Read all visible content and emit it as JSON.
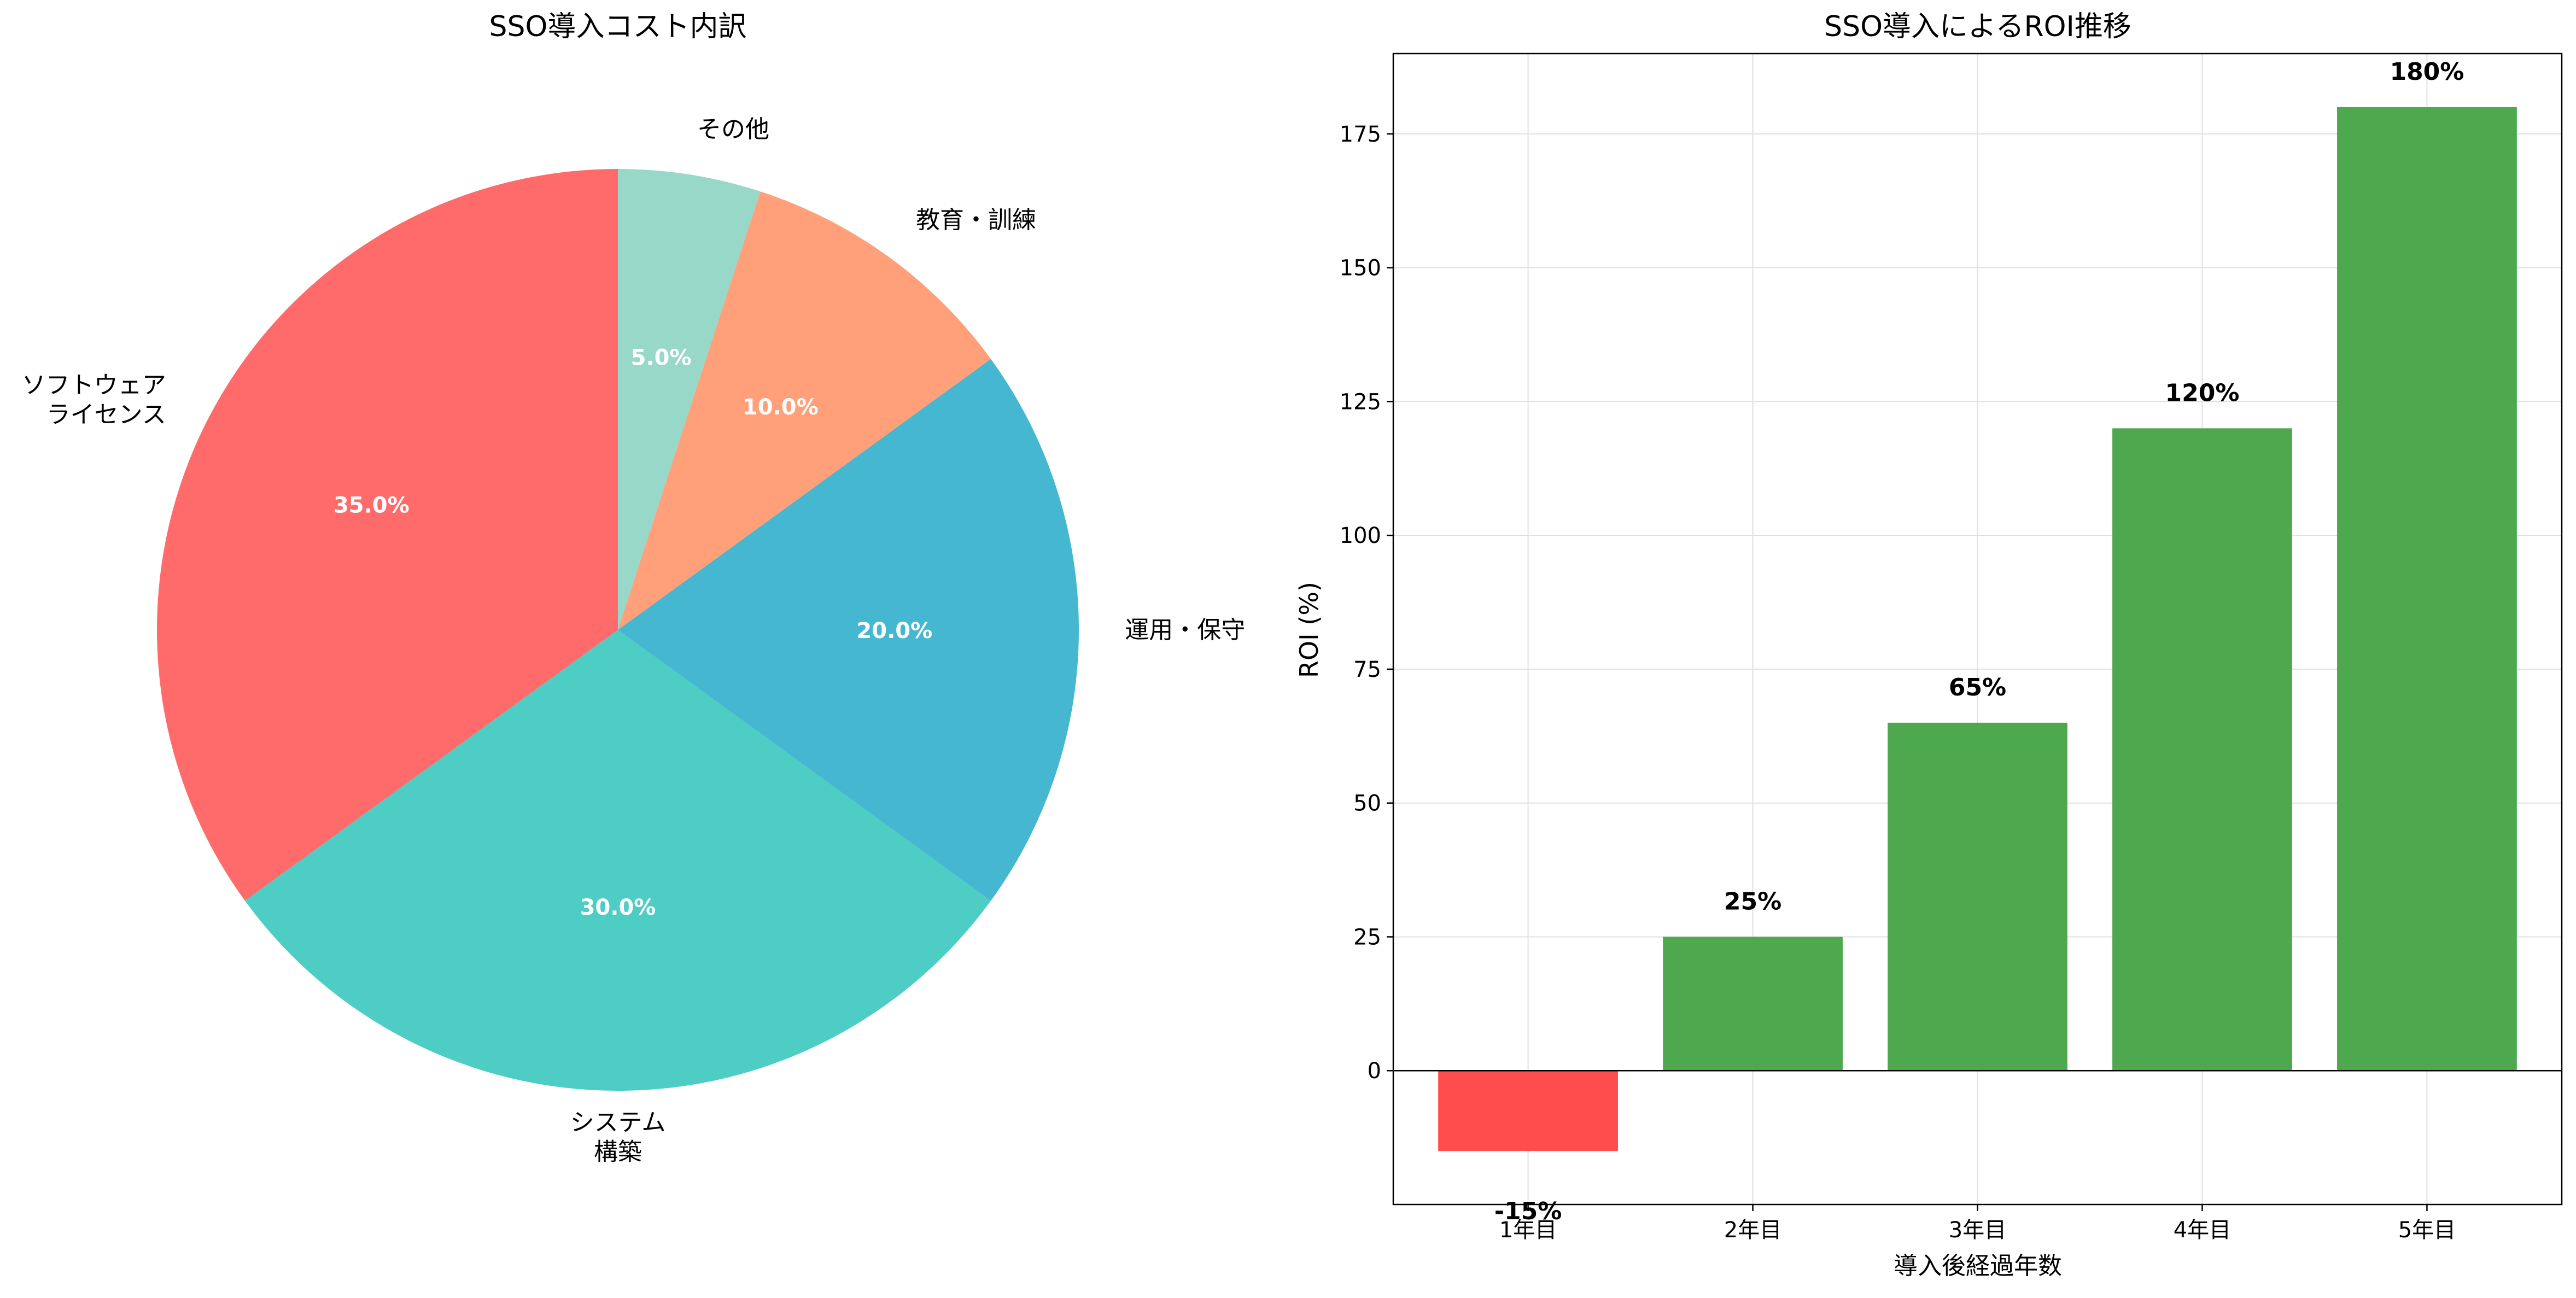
{
  "chart_data": [
    {
      "type": "pie",
      "title": "SSO導入コスト内訳",
      "start_angle": 90,
      "direction": "counterclockwise",
      "slices": [
        {
          "label": "ソフトウェア\nライセンス",
          "value": 35.0,
          "pct_label": "35.0%",
          "color": "#ff6b6b"
        },
        {
          "label": "システム\n構築",
          "value": 30.0,
          "pct_label": "30.0%",
          "color": "#4ecdc4"
        },
        {
          "label": "運用・保守",
          "value": 20.0,
          "pct_label": "20.0%",
          "color": "#45b7d1"
        },
        {
          "label": "教育・訓練",
          "value": 10.0,
          "pct_label": "10.0%",
          "color": "#ffa07a"
        },
        {
          "label": "その他",
          "value": 5.0,
          "pct_label": "5.0%",
          "color": "#98d8c8"
        }
      ]
    },
    {
      "type": "bar",
      "title": "SSO導入によるROI推移",
      "xlabel": "導入後経過年数",
      "ylabel": "ROI (%)",
      "categories": [
        "1年目",
        "2年目",
        "3年目",
        "4年目",
        "5年目"
      ],
      "values": [
        -15,
        25,
        65,
        120,
        180
      ],
      "value_labels": [
        "-15%",
        "25%",
        "65%",
        "120%",
        "180%"
      ],
      "colors": [
        "#ff4d4d",
        "#4ea84e",
        "#4ea84e",
        "#4ea84e",
        "#4ea84e"
      ],
      "ylim": [
        -25,
        190
      ],
      "yticks": [
        0,
        25,
        50,
        75,
        100,
        125,
        150,
        175
      ],
      "grid": true,
      "zero_line": true
    }
  ]
}
